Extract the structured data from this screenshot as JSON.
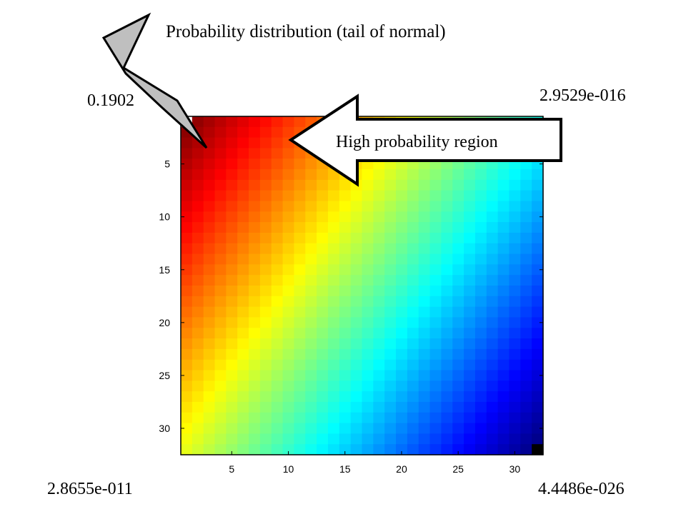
{
  "chart_data": {
    "type": "heatmap",
    "title": "Probability distribution (tail of normal)",
    "xlabel": "",
    "ylabel": "",
    "grid_size": [
      32,
      32
    ],
    "x_ticks": [
      5,
      10,
      15,
      20,
      25,
      30
    ],
    "y_ticks": [
      5,
      10,
      15,
      20,
      25,
      30
    ],
    "xlim": [
      0.5,
      32.5
    ],
    "ylim": [
      0.5,
      32.5
    ],
    "y_axis_direction": "top-to-bottom",
    "colormap": "jet",
    "color_scale": "log",
    "corner_values": {
      "top_left": "0.1902",
      "top_right": "2.9529e-016",
      "bottom_left": "2.8655e-011",
      "bottom_right": "4.4486e-026"
    },
    "corner_values_numeric": {
      "top_left": 0.1902,
      "top_right": 2.9529e-16,
      "bottom_left": 2.8655e-11,
      "bottom_right": 4.4486e-26
    },
    "annotations": {
      "high_region": "High probability region"
    },
    "grid": false
  }
}
